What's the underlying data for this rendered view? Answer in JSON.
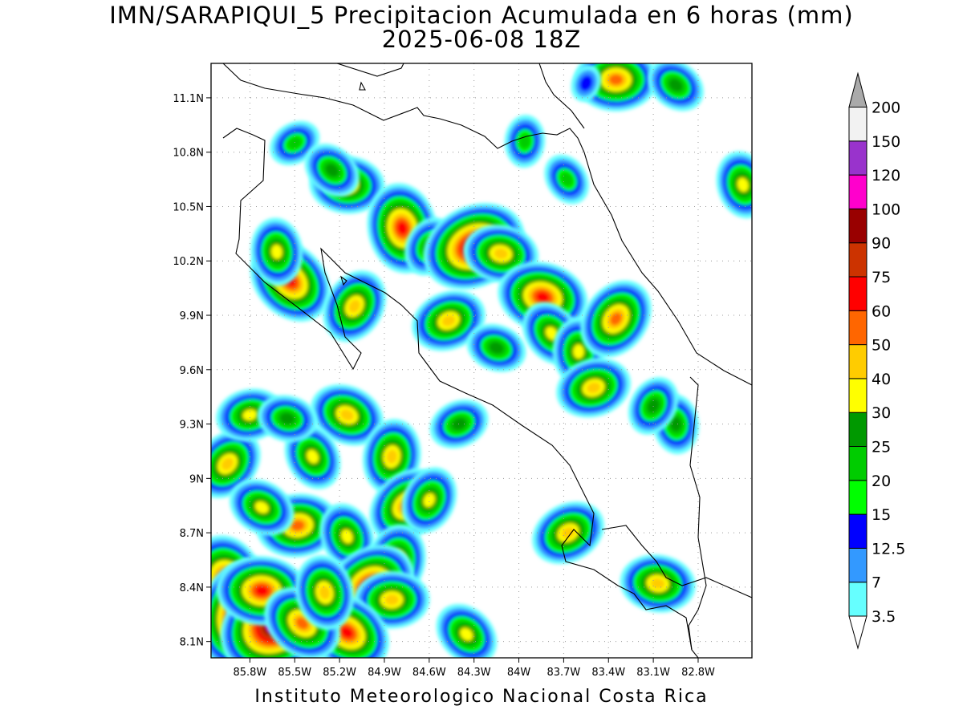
{
  "title": {
    "line1": "IMN/SARAPIQUI_5 Precipitacion Acumulada en 6 horas (mm)",
    "line2": "2025-06-08 18Z"
  },
  "footer": "Instituto Meteorologico Nacional Costa Rica",
  "map": {
    "lon_range": [
      -86.06,
      -82.44
    ],
    "lat_range": [
      8.01,
      11.29
    ],
    "lat_ticks": [
      {
        "value": 11.1,
        "label": "11.1N"
      },
      {
        "value": 10.8,
        "label": "10.8N"
      },
      {
        "value": 10.5,
        "label": "10.5N"
      },
      {
        "value": 10.2,
        "label": "10.2N"
      },
      {
        "value": 9.9,
        "label": "9.9N"
      },
      {
        "value": 9.6,
        "label": "9.6N"
      },
      {
        "value": 9.3,
        "label": "9.3N"
      },
      {
        "value": 9.0,
        "label": "9N"
      },
      {
        "value": 8.7,
        "label": "8.7N"
      },
      {
        "value": 8.4,
        "label": "8.4N"
      },
      {
        "value": 8.1,
        "label": "8.1N"
      }
    ],
    "lon_ticks": [
      {
        "value": -85.8,
        "label": "85.8W"
      },
      {
        "value": -85.5,
        "label": "85.5W"
      },
      {
        "value": -85.2,
        "label": "85.2W"
      },
      {
        "value": -84.9,
        "label": "84.9W"
      },
      {
        "value": -84.6,
        "label": "84.6W"
      },
      {
        "value": -84.3,
        "label": "84.3W"
      },
      {
        "value": -84.0,
        "label": "84W"
      },
      {
        "value": -83.7,
        "label": "83.7W"
      },
      {
        "value": -83.4,
        "label": "83.4W"
      },
      {
        "value": -83.1,
        "label": "83.1W"
      },
      {
        "value": -82.8,
        "label": "82.8W"
      }
    ],
    "gridlines": "dotted"
  },
  "colorbar": {
    "levels": [
      "3.5",
      "7",
      "12.5",
      "15",
      "20",
      "25",
      "30",
      "40",
      "50",
      "60",
      "75",
      "90",
      "100",
      "120",
      "150",
      "200"
    ],
    "colors": [
      "#66ffff",
      "#3399ff",
      "#0000ff",
      "#00ff00",
      "#00cc00",
      "#009900",
      "#ffff00",
      "#ffcc00",
      "#ff6600",
      "#ff0000",
      "#cc3300",
      "#990000",
      "#ff00cc",
      "#9933cc",
      "#f2f2f2",
      "#aaaaaa"
    ]
  },
  "precip_cells": [
    {
      "lon": -83.35,
      "lat": 11.2,
      "mm": 50
    },
    {
      "lon": -82.95,
      "lat": 11.17,
      "mm": 25
    },
    {
      "lon": -82.5,
      "lat": 10.62,
      "mm": 30
    },
    {
      "lon": -83.55,
      "lat": 11.18,
      "mm": 12.5
    },
    {
      "lon": -85.5,
      "lat": 10.85,
      "mm": 20
    },
    {
      "lon": -85.15,
      "lat": 10.62,
      "mm": 40
    },
    {
      "lon": -85.25,
      "lat": 10.7,
      "mm": 25
    },
    {
      "lon": -84.78,
      "lat": 10.38,
      "mm": 60
    },
    {
      "lon": -84.6,
      "lat": 10.28,
      "mm": 25
    },
    {
      "lon": -84.3,
      "lat": 10.28,
      "mm": 90
    },
    {
      "lon": -84.12,
      "lat": 10.24,
      "mm": 40
    },
    {
      "lon": -85.53,
      "lat": 10.09,
      "mm": 60
    },
    {
      "lon": -85.62,
      "lat": 10.25,
      "mm": 30
    },
    {
      "lon": -85.1,
      "lat": 9.95,
      "mm": 40
    },
    {
      "lon": -84.47,
      "lat": 9.87,
      "mm": 40
    },
    {
      "lon": -83.84,
      "lat": 10.0,
      "mm": 60
    },
    {
      "lon": -83.78,
      "lat": 9.8,
      "mm": 30
    },
    {
      "lon": -83.6,
      "lat": 9.7,
      "mm": 30
    },
    {
      "lon": -83.35,
      "lat": 9.88,
      "mm": 50
    },
    {
      "lon": -83.5,
      "lat": 9.5,
      "mm": 40
    },
    {
      "lon": -84.15,
      "lat": 9.72,
      "mm": 25
    },
    {
      "lon": -83.68,
      "lat": 10.65,
      "mm": 20
    },
    {
      "lon": -83.96,
      "lat": 10.86,
      "mm": 20
    },
    {
      "lon": -85.95,
      "lat": 9.08,
      "mm": 40
    },
    {
      "lon": -85.8,
      "lat": 9.35,
      "mm": 30
    },
    {
      "lon": -85.15,
      "lat": 9.35,
      "mm": 40
    },
    {
      "lon": -85.38,
      "lat": 9.12,
      "mm": 30
    },
    {
      "lon": -84.85,
      "lat": 9.12,
      "mm": 40
    },
    {
      "lon": -84.75,
      "lat": 8.85,
      "mm": 50
    },
    {
      "lon": -85.48,
      "lat": 8.74,
      "mm": 50
    },
    {
      "lon": -85.72,
      "lat": 8.84,
      "mm": 30
    },
    {
      "lon": -85.15,
      "lat": 8.68,
      "mm": 30
    },
    {
      "lon": -84.82,
      "lat": 8.54,
      "mm": 40
    },
    {
      "lon": -85.0,
      "lat": 8.4,
      "mm": 75
    },
    {
      "lon": -84.85,
      "lat": 8.33,
      "mm": 40
    },
    {
      "lon": -85.15,
      "lat": 8.15,
      "mm": 60
    },
    {
      "lon": -85.95,
      "lat": 8.42,
      "mm": 75
    },
    {
      "lon": -85.85,
      "lat": 8.25,
      "mm": 100
    },
    {
      "lon": -85.62,
      "lat": 8.2,
      "mm": 120
    },
    {
      "lon": -85.72,
      "lat": 8.38,
      "mm": 60
    },
    {
      "lon": -85.45,
      "lat": 8.2,
      "mm": 50
    },
    {
      "lon": -85.3,
      "lat": 8.37,
      "mm": 40
    },
    {
      "lon": -84.6,
      "lat": 8.88,
      "mm": 30
    },
    {
      "lon": -83.67,
      "lat": 8.7,
      "mm": 40
    },
    {
      "lon": -83.07,
      "lat": 8.42,
      "mm": 40
    },
    {
      "lon": -84.35,
      "lat": 8.14,
      "mm": 30
    },
    {
      "lon": -82.95,
      "lat": 9.3,
      "mm": 25
    },
    {
      "lon": -83.1,
      "lat": 9.4,
      "mm": 25
    },
    {
      "lon": -84.4,
      "lat": 9.3,
      "mm": 25
    },
    {
      "lon": -85.55,
      "lat": 9.33,
      "mm": 25
    }
  ]
}
